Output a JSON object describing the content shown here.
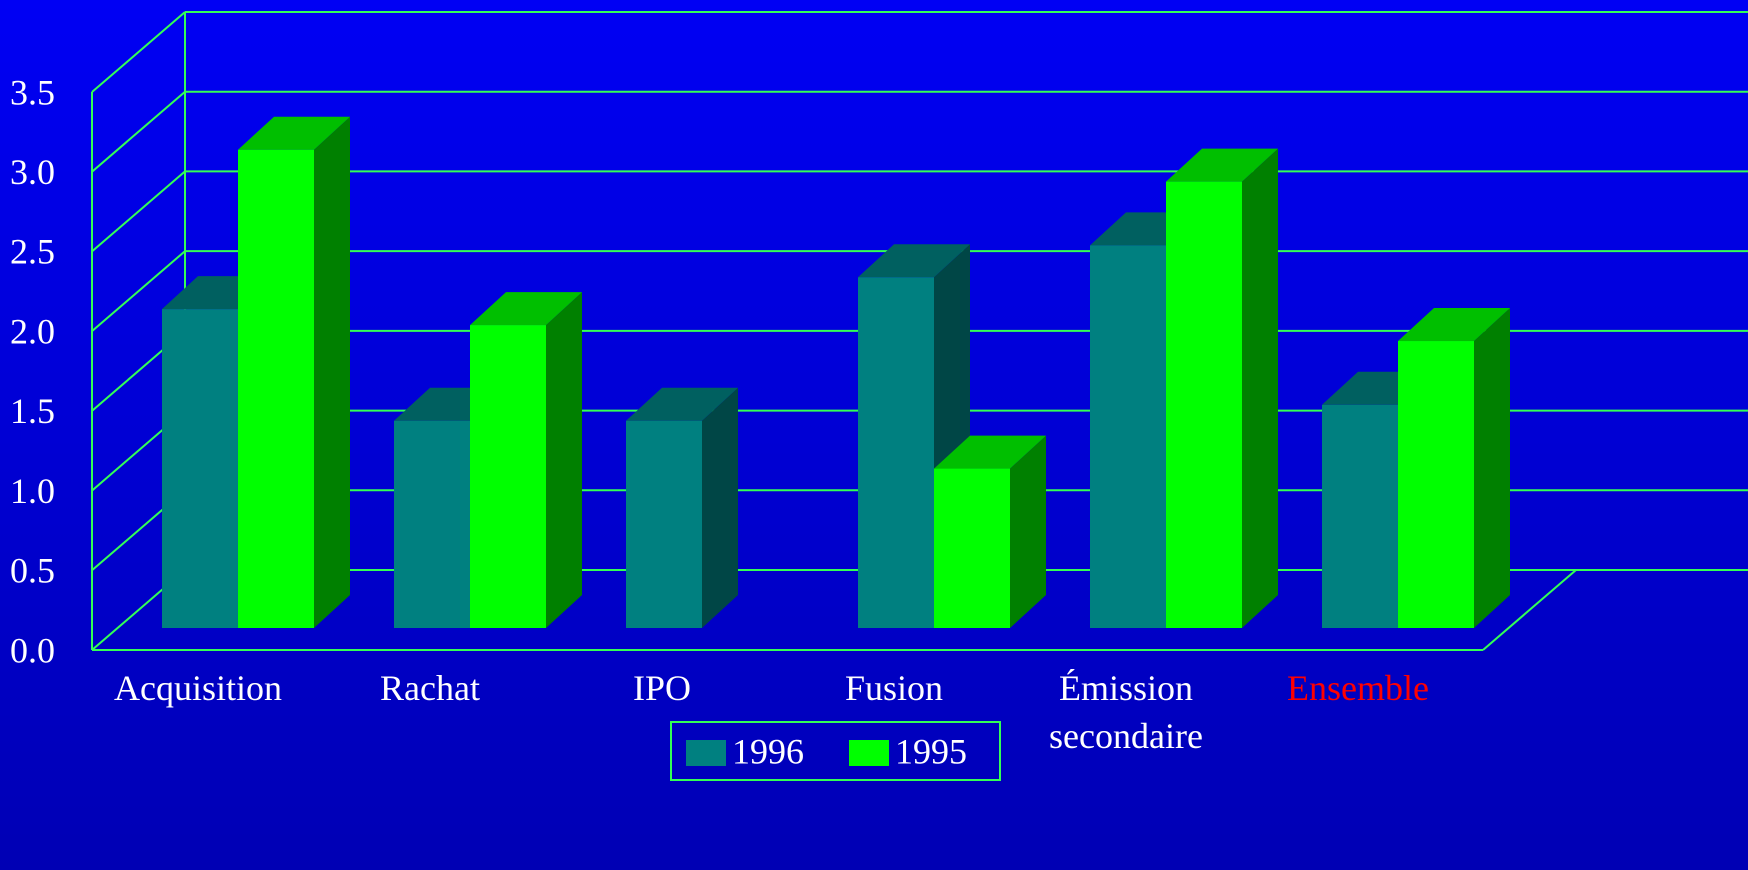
{
  "chart_data": {
    "type": "bar3d",
    "categories": [
      "Acquisition",
      "Rachat",
      "IPO",
      "Fusion",
      "Émission secondaire",
      "Ensemble"
    ],
    "category_colors": [
      "#ffffff",
      "#ffffff",
      "#ffffff",
      "#ffffff",
      "#ffffff",
      "#ff0000"
    ],
    "series": [
      {
        "name": "1996",
        "color": "#008080",
        "values": [
          2.0,
          1.3,
          1.3,
          2.2,
          2.4,
          1.4
        ]
      },
      {
        "name": "1995",
        "color": "#00ff00",
        "values": [
          3.0,
          1.9,
          null,
          1.0,
          2.8,
          1.8
        ]
      }
    ],
    "ylim": [
      0,
      3.5
    ],
    "yticks": [
      {
        "value": 0,
        "label": "0.0"
      },
      0.5,
      {
        "value": 1,
        "label": "1.0"
      },
      1.5,
      {
        "value": 2,
        "label": "2.0"
      },
      2.5,
      {
        "value": 3,
        "label": "3.0"
      },
      3.5
    ],
    "grid": true,
    "grid_color": "#33ff55",
    "legend": "bottom"
  }
}
